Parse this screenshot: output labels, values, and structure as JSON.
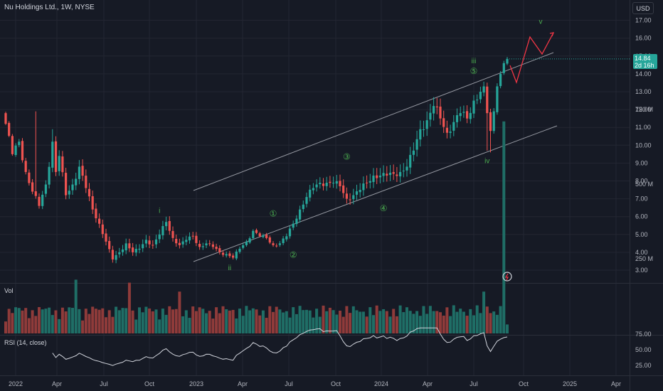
{
  "header": {
    "title": "Nu Holdings Ltd., 1W, NYSE",
    "currency": "USD"
  },
  "last_price": {
    "value": "14.84",
    "countdown": "2d 16h",
    "color": "#26a69a"
  },
  "colors": {
    "up": "#26a69a",
    "down": "#ef5350",
    "wave_label": "#4caf50",
    "projection": "#f23645",
    "channel": "#9598a1",
    "rsi_line": "#d1d4dc",
    "grid": "#232632",
    "background": "#161a25",
    "text": "#b2b5be"
  },
  "chart_data": [
    {
      "type": "candlestick",
      "title": "Nu Holdings Ltd., 1W, NYSE",
      "currency": "USD",
      "ylim": [
        2.5,
        17.6
      ],
      "y_ticks": [
        "3.00",
        "4.00",
        "5.00",
        "6.00",
        "7.00",
        "8.00",
        "9.00",
        "10.00",
        "11.00",
        "12.00",
        "13.00",
        "14.00",
        "15.00",
        "16.00",
        "17.00"
      ],
      "x_ticks": [
        "2022",
        "Apr",
        "Jul",
        "Oct",
        "2023",
        "Apr",
        "Jul",
        "Oct",
        "2024",
        "Apr",
        "Jul",
        "Oct",
        "2025",
        "Apr"
      ],
      "last_price": 14.84,
      "anchors": [
        [
          0,
          11.2
        ],
        [
          2,
          9.5
        ],
        [
          4,
          10.2
        ],
        [
          6,
          8.5
        ],
        [
          8,
          7.4
        ],
        [
          10,
          6.6
        ],
        [
          12,
          7.8
        ],
        [
          14,
          10.2
        ],
        [
          15,
          8.5
        ],
        [
          16,
          9.4
        ],
        [
          18,
          7.2
        ],
        [
          20,
          7.8
        ],
        [
          22,
          8.8
        ],
        [
          24,
          7.6
        ],
        [
          26,
          6.4
        ],
        [
          28,
          5.6
        ],
        [
          30,
          4.6
        ],
        [
          32,
          3.6
        ],
        [
          34,
          4.0
        ],
        [
          36,
          4.5
        ],
        [
          38,
          4.0
        ],
        [
          40,
          4.2
        ],
        [
          42,
          4.7
        ],
        [
          44,
          4.4
        ],
        [
          46,
          5.0
        ],
        [
          48,
          5.7
        ],
        [
          50,
          4.8
        ],
        [
          52,
          4.4
        ],
        [
          54,
          4.7
        ],
        [
          56,
          4.9
        ],
        [
          58,
          4.3
        ],
        [
          60,
          4.5
        ],
        [
          62,
          4.3
        ],
        [
          64,
          4.0
        ],
        [
          66,
          3.9
        ],
        [
          68,
          3.7
        ],
        [
          70,
          4.2
        ],
        [
          72,
          4.6
        ],
        [
          74,
          5.2
        ],
        [
          76,
          4.9
        ],
        [
          78,
          4.8
        ],
        [
          80,
          4.4
        ],
        [
          82,
          4.5
        ],
        [
          84,
          4.9
        ],
        [
          86,
          5.6
        ],
        [
          88,
          6.4
        ],
        [
          90,
          7.1
        ],
        [
          92,
          7.6
        ],
        [
          94,
          7.9
        ],
        [
          96,
          7.9
        ],
        [
          98,
          7.9
        ],
        [
          100,
          7.7
        ],
        [
          102,
          7.0
        ],
        [
          104,
          7.2
        ],
        [
          106,
          7.5
        ],
        [
          108,
          7.9
        ],
        [
          110,
          8.3
        ],
        [
          112,
          8.3
        ],
        [
          114,
          8.3
        ],
        [
          116,
          8.4
        ],
        [
          118,
          8.5
        ],
        [
          120,
          8.8
        ],
        [
          122,
          9.7
        ],
        [
          124,
          10.9
        ],
        [
          126,
          11.4
        ],
        [
          128,
          12.2
        ],
        [
          130,
          11.5
        ],
        [
          132,
          10.7
        ],
        [
          134,
          11.3
        ],
        [
          136,
          11.8
        ],
        [
          138,
          11.5
        ],
        [
          140,
          12.5
        ],
        [
          142,
          13.0
        ],
        [
          143,
          13.3
        ],
        [
          144,
          11.8
        ],
        [
          145,
          10.8
        ],
        [
          146,
          11.9
        ],
        [
          147,
          13.3
        ],
        [
          148,
          14.0
        ],
        [
          149,
          14.6
        ],
        [
          150,
          14.84
        ]
      ],
      "volume": {
        "label": "Vol",
        "ticks": [
          "750 M",
          "500 M",
          "250 M"
        ],
        "ylim": [
          0,
          800
        ],
        "spike_week": 149,
        "spike_value": 710
      },
      "rsi": {
        "label": "RSI (14, close)",
        "ticks": [
          "75.00",
          "50.00",
          "25.00"
        ],
        "ylim": [
          15,
          92
        ]
      },
      "waves": [
        {
          "label": "i",
          "week": 46,
          "price": 6.2
        },
        {
          "label": "ii",
          "week": 67,
          "price": 3.0
        },
        {
          "label": "①",
          "week": 80,
          "price": 6.0
        },
        {
          "label": "②",
          "week": 86,
          "price": 3.7
        },
        {
          "label": "③",
          "week": 102,
          "price": 9.2
        },
        {
          "label": "④",
          "week": 113,
          "price": 6.3
        },
        {
          "label": "⑤",
          "week": 140,
          "price": 14.0
        },
        {
          "label": "iii",
          "week": 140,
          "price": 14.6
        },
        {
          "label": "iv",
          "week": 144,
          "price": 9.0
        },
        {
          "label": "v",
          "week": 160,
          "price": 16.8
        }
      ]
    }
  ]
}
